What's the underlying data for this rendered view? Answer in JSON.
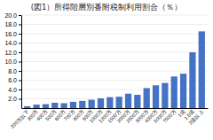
{
  "chart_data": {
    "type": "bar",
    "title": "(図1）所得階層別番附税制利用割合（％）",
    "categories": [
      "200万以下",
      "300万",
      "400万",
      "500万",
      "600万",
      "700万",
      "800万",
      "900万",
      "1000万",
      "1200万",
      "1500万",
      "2000万",
      "2500万",
      "3000万",
      "4000万",
      "5000万",
      "7500万",
      "1億",
      "1.5億",
      "2億以上"
    ],
    "values": [
      0.4,
      0.75,
      0.85,
      1.15,
      1.05,
      1.35,
      1.55,
      1.8,
      2.1,
      2.35,
      2.45,
      3.1,
      2.85,
      4.3,
      4.9,
      5.4,
      6.8,
      7.4,
      12.0,
      16.5
    ],
    "color": "#4472C4",
    "ylim": [
      0,
      20
    ],
    "yticks": [
      {
        "value": 2.0,
        "label": "2.0"
      },
      {
        "value": 4.0,
        "label": "4.0"
      },
      {
        "value": 6.0,
        "label": "6.0"
      },
      {
        "value": 8.0,
        "label": "8.0"
      },
      {
        "value": 10.0,
        "label": "10.0"
      },
      {
        "value": 12.0,
        "label": "12.0"
      },
      {
        "value": 14.0,
        "label": "14.0"
      },
      {
        "value": 16.0,
        "label": "16.0"
      },
      {
        "value": 18.0,
        "label": "18.0"
      },
      {
        "value": 20.0,
        "label": "20.0"
      }
    ],
    "grid": true
  }
}
